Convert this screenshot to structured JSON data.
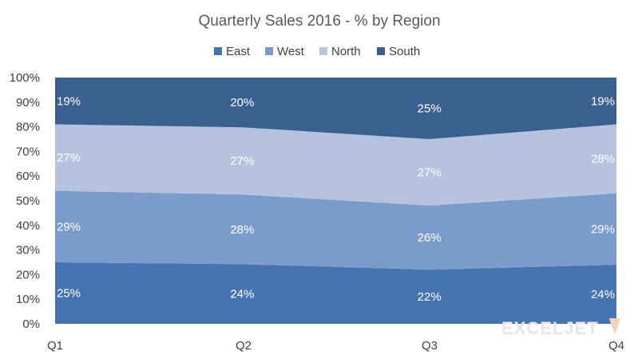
{
  "chart_data": {
    "type": "area",
    "stacked": true,
    "percent": true,
    "title": "Quarterly Sales 2016 -  % by Region",
    "categories": [
      "Q1",
      "Q2",
      "Q3",
      "Q4"
    ],
    "series": [
      {
        "name": "East",
        "values": [
          25,
          24,
          22,
          24
        ],
        "labels": [
          "25%",
          "24%",
          "22%",
          "24%"
        ],
        "color": "#4674b0"
      },
      {
        "name": "West",
        "values": [
          29,
          28,
          26,
          29
        ],
        "labels": [
          "29%",
          "28%",
          "26%",
          "29%"
        ],
        "color": "#7b9cca"
      },
      {
        "name": "North",
        "values": [
          27,
          27,
          27,
          28
        ],
        "labels": [
          "27%",
          "27%",
          "27%",
          "28%"
        ],
        "color": "#b5c3df"
      },
      {
        "name": "South",
        "values": [
          19,
          20,
          25,
          19
        ],
        "labels": [
          "19%",
          "20%",
          "25%",
          "19%"
        ],
        "color": "#3a6090"
      }
    ],
    "y_ticks": [
      "0%",
      "10%",
      "20%",
      "30%",
      "40%",
      "50%",
      "60%",
      "70%",
      "80%",
      "90%",
      "100%"
    ],
    "ylim": [
      0,
      100
    ],
    "xlabel": "",
    "ylabel": "",
    "grid": false,
    "legend": "top-center"
  },
  "watermark": "EXCELJET"
}
